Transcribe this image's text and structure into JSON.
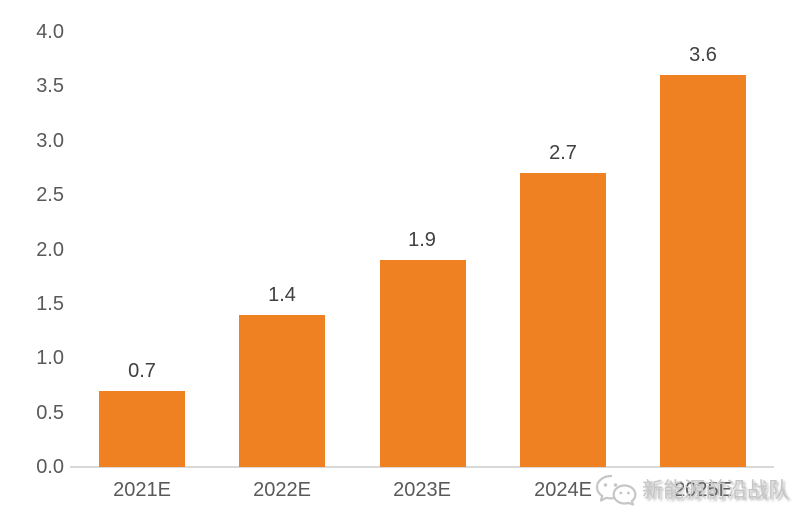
{
  "chart_data": {
    "type": "bar",
    "categories": [
      "2021E",
      "2022E",
      "2023E",
      "2024E",
      "2025E"
    ],
    "values": [
      0.7,
      1.4,
      1.9,
      2.7,
      3.6
    ],
    "data_labels": [
      "0.7",
      "1.4",
      "1.9",
      "2.7",
      "3.6"
    ],
    "title": "",
    "xlabel": "",
    "ylabel": "",
    "ylim": [
      0.0,
      4.0
    ],
    "yticks": [
      "0.0",
      "0.5",
      "1.0",
      "1.5",
      "2.0",
      "2.5",
      "3.0",
      "3.5",
      "4.0"
    ],
    "grid": false,
    "legend_position": "none",
    "bar_color": "#F08122"
  },
  "colors": {
    "bar": "#F08122",
    "axis_label": "#595959",
    "data_label": "#404040",
    "axis_line": "#D9D9D9",
    "watermark": "#C6C6C6"
  },
  "watermark": {
    "icon": "wechat-icon",
    "text": "新能源前沿战队"
  }
}
